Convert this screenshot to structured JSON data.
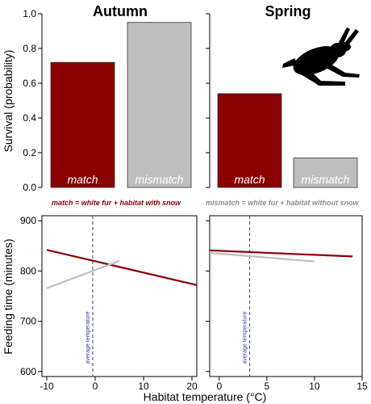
{
  "colors": {
    "match": "#8b0000",
    "mismatch": "#bebebe",
    "avg_line": "#3a3aa8",
    "axis": "#000000"
  },
  "icon": "hare-silhouette",
  "legend": {
    "match_text": "match = white fur + habitat with snow",
    "mismatch_text": "mismatch = white fur + habitat without snow"
  },
  "chart_data": [
    {
      "type": "bar",
      "title": "Autumn",
      "ylabel": "Survival (probability)",
      "ylim": [
        0,
        1.0
      ],
      "yticks": [
        "0.0",
        "0.2",
        "0.4",
        "0.6",
        "0.8",
        "1.0"
      ],
      "categories": [
        "match",
        "mismatch"
      ],
      "values": [
        0.72,
        0.95
      ]
    },
    {
      "type": "bar",
      "title": "Spring",
      "ylim": [
        0,
        1.0
      ],
      "categories": [
        "match",
        "mismatch"
      ],
      "values": [
        0.54,
        0.17
      ]
    },
    {
      "type": "line",
      "ylabel": "Feeding time (minutes)",
      "xlim": [
        -11,
        21
      ],
      "ylim": [
        590,
        910
      ],
      "xticks": [
        "-10",
        "0",
        "10",
        "20"
      ],
      "yticks": [
        "600",
        "700",
        "800",
        "900"
      ],
      "vline": {
        "x": -0.5,
        "label": "average temperature"
      },
      "series": [
        {
          "id": "match",
          "x": [
            -10,
            21
          ],
          "y": [
            842,
            772
          ]
        },
        {
          "id": "mismatch",
          "x": [
            -10,
            5
          ],
          "y": [
            766,
            820
          ]
        }
      ]
    },
    {
      "type": "line",
      "xlim": [
        -1,
        15
      ],
      "ylim": [
        590,
        910
      ],
      "xticks": [
        "0",
        "5",
        "10",
        "15"
      ],
      "vline": {
        "x": 3.2,
        "label": "average temperature"
      },
      "series": [
        {
          "id": "match",
          "x": [
            -1,
            14
          ],
          "y": [
            841,
            829
          ]
        },
        {
          "id": "mismatch",
          "x": [
            -1,
            10
          ],
          "y": [
            836,
            819
          ]
        }
      ]
    }
  ],
  "xlabel": "Habitat temperature (°C)"
}
